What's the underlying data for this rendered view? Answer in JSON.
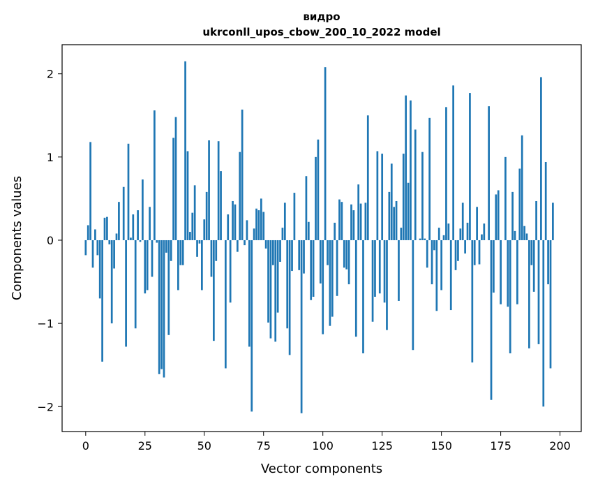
{
  "chart_data": {
    "type": "bar",
    "title_line1": "видро",
    "title_line2": "ukrconll_upos_cbow_200_10_2022 model",
    "xlabel": "Vector components",
    "ylabel": "Components values",
    "xlim": [
      -9.95,
      208.95
    ],
    "ylim": [
      -2.3,
      2.35
    ],
    "xticks": [
      0,
      25,
      50,
      75,
      100,
      125,
      150,
      175,
      200
    ],
    "yticks": [
      -2,
      -1,
      0,
      1,
      2
    ],
    "ytick_labels": [
      "−2",
      "−1",
      "0",
      "1",
      "2"
    ],
    "grid": false,
    "bar_color": "#1f77b4",
    "values": [
      -0.18,
      0.18,
      1.18,
      -0.33,
      0.13,
      -0.18,
      -0.7,
      -1.46,
      0.27,
      0.28,
      -0.05,
      -1.0,
      -0.34,
      0.08,
      0.46,
      0.0,
      0.64,
      -1.28,
      1.16,
      0.03,
      0.31,
      -1.06,
      0.36,
      -0.02,
      0.73,
      -0.64,
      -0.6,
      0.4,
      -0.44,
      1.56,
      -0.03,
      -1.61,
      -1.55,
      -1.65,
      -0.15,
      -1.14,
      -0.25,
      1.23,
      1.48,
      -0.6,
      -0.3,
      -0.3,
      2.15,
      1.07,
      0.1,
      0.33,
      0.66,
      -0.2,
      -0.04,
      -0.6,
      0.25,
      0.58,
      1.2,
      -0.44,
      -1.21,
      -0.25,
      1.19,
      0.83,
      0.0,
      -1.54,
      0.31,
      -0.75,
      0.47,
      0.43,
      -0.14,
      1.06,
      1.57,
      -0.06,
      0.24,
      -1.28,
      -2.06,
      0.14,
      0.38,
      0.36,
      0.5,
      0.34,
      -0.1,
      -0.99,
      -1.18,
      -0.3,
      -1.22,
      -0.87,
      -0.26,
      0.15,
      0.45,
      -1.06,
      -1.38,
      -0.37,
      0.57,
      0.0,
      -0.36,
      -2.08,
      -0.4,
      0.77,
      0.22,
      -0.72,
      -0.68,
      1.0,
      1.21,
      -0.52,
      -1.13,
      2.08,
      -0.3,
      -1.03,
      -0.92,
      0.21,
      -0.67,
      0.49,
      0.46,
      -0.33,
      -0.35,
      -0.53,
      0.43,
      0.36,
      -1.16,
      0.67,
      0.44,
      -1.36,
      0.45,
      1.5,
      0.0,
      -0.98,
      -0.68,
      1.07,
      -0.64,
      1.04,
      -0.75,
      -1.08,
      0.58,
      0.92,
      0.4,
      0.47,
      -0.73,
      0.15,
      1.04,
      1.74,
      0.69,
      1.68,
      -1.32,
      1.33,
      0.0,
      0.02,
      1.06,
      0.02,
      -0.33,
      1.47,
      -0.53,
      -0.12,
      -0.85,
      0.15,
      -0.6,
      0.06,
      1.6,
      0.2,
      -0.84,
      1.86,
      -0.36,
      -0.25,
      0.14,
      0.45,
      -0.16,
      0.21,
      1.77,
      -1.47,
      -0.3,
      0.4,
      -0.29,
      0.07,
      0.2,
      0.0,
      1.61,
      -1.92,
      -0.63,
      0.55,
      0.6,
      -0.77,
      0.0,
      1.0,
      -0.8,
      -1.36,
      0.58,
      0.11,
      -0.77,
      0.86,
      1.26,
      0.17,
      0.08,
      -1.3,
      -0.3,
      -0.62,
      0.47,
      -1.25,
      1.96,
      -2.0,
      0.94,
      -0.53,
      -1.54,
      0.45,
      0.0,
      0.0
    ]
  }
}
